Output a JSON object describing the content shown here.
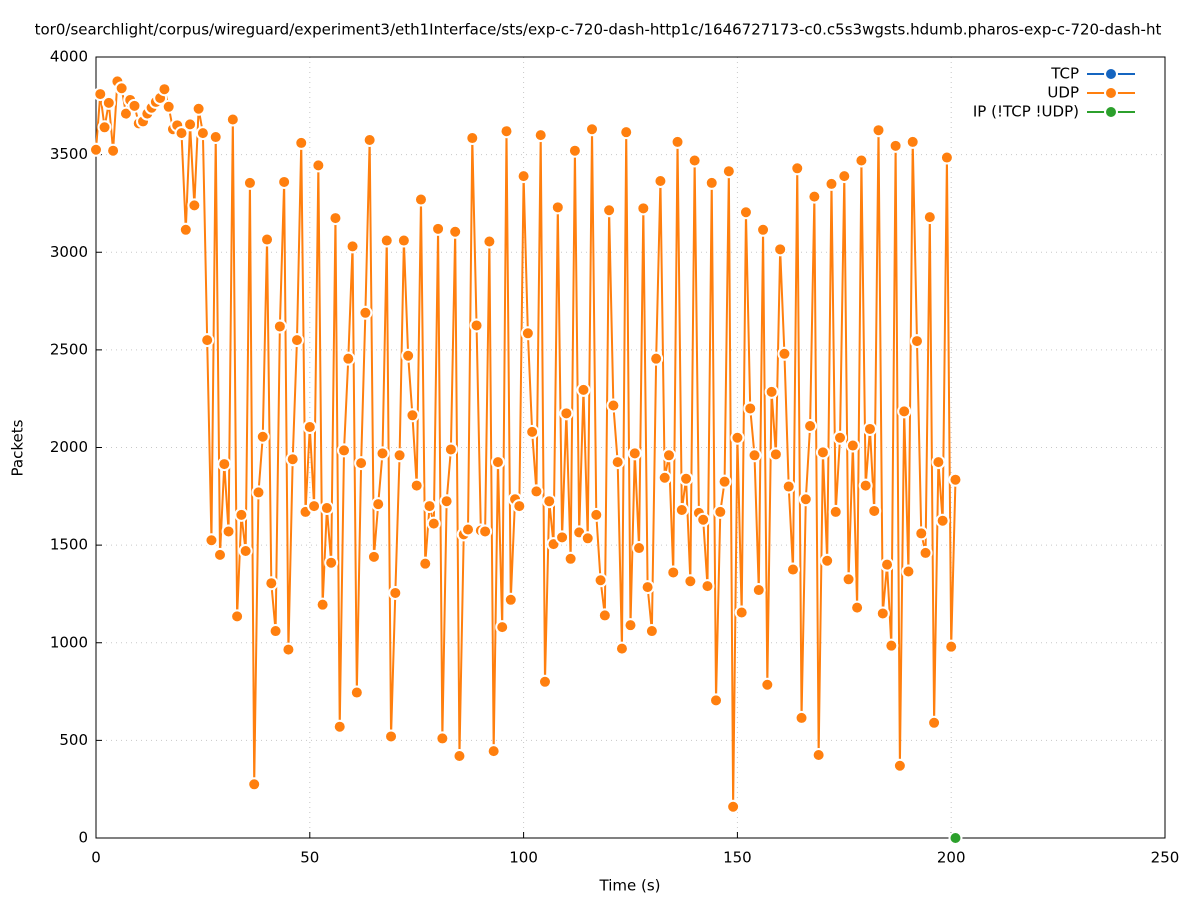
{
  "chart_data": {
    "type": "line",
    "title": "tor0/searchlight/corpus/wireguard/experiment3/eth1Interface/sts/exp-c-720-dash-http1c/1646727173-c0.c5s3wgsts.hdumb.pharos-exp-c-720-dash-ht",
    "x_label": "Time (s)",
    "y_label": "Packets",
    "xlim": [
      0,
      250
    ],
    "xticks": [
      0,
      50,
      100,
      150,
      200,
      250
    ],
    "ylim": [
      0,
      4000
    ],
    "yticks": [
      0,
      500,
      1000,
      1500,
      2000,
      2500,
      3000,
      3500,
      4000
    ],
    "grid": true,
    "legend": "top-right",
    "series": [
      {
        "name": "TCP",
        "color": "#1565c0",
        "x": [],
        "values": []
      },
      {
        "name": "UDP",
        "color": "#ff7f0e",
        "x": [
          0,
          1,
          2,
          3,
          4,
          5,
          6,
          7,
          8,
          9,
          10,
          11,
          12,
          13,
          14,
          15,
          16,
          17,
          18,
          19,
          20,
          21,
          22,
          23,
          24,
          25,
          26,
          27,
          28,
          29,
          30,
          31,
          32,
          33,
          34,
          35,
          36,
          37,
          38,
          39,
          40,
          41,
          42,
          43,
          44,
          45,
          46,
          47,
          48,
          49,
          50,
          51,
          52,
          53,
          54,
          55,
          56,
          57,
          58,
          59,
          60,
          61,
          62,
          63,
          64,
          65,
          66,
          67,
          68,
          69,
          70,
          71,
          72,
          73,
          74,
          75,
          76,
          77,
          78,
          79,
          80,
          81,
          82,
          83,
          84,
          85,
          86,
          87,
          88,
          89,
          90,
          91,
          92,
          93,
          94,
          95,
          96,
          97,
          98,
          99,
          100,
          101,
          102,
          103,
          104,
          105,
          106,
          107,
          108,
          109,
          110,
          111,
          112,
          113,
          114,
          115,
          116,
          117,
          118,
          119,
          120,
          121,
          122,
          123,
          124,
          125,
          126,
          127,
          128,
          129,
          130,
          131,
          132,
          133,
          134,
          135,
          136,
          137,
          138,
          139,
          140,
          141,
          142,
          143,
          144,
          145,
          146,
          147,
          148,
          149,
          150,
          151,
          152,
          153,
          154,
          155,
          156,
          157,
          158,
          159,
          160,
          161,
          162,
          163,
          164,
          165,
          166,
          167,
          168,
          169,
          170,
          171,
          172,
          173,
          174,
          175,
          176,
          177,
          178,
          179,
          180,
          181,
          182,
          183,
          184,
          185,
          186,
          187,
          188,
          189,
          190,
          191,
          192,
          193,
          194,
          195,
          196,
          197,
          198,
          199,
          200,
          201
        ],
        "values": [
          3525,
          3810,
          3640,
          3765,
          3520,
          3875,
          3840,
          3710,
          3780,
          3750,
          3660,
          3670,
          3710,
          3740,
          3770,
          3790,
          3835,
          3745,
          3630,
          3650,
          3610,
          3115,
          3655,
          3240,
          3735,
          3610,
          2550,
          1525,
          3590,
          1450,
          1915,
          1570,
          3680,
          1135,
          1655,
          1470,
          3355,
          275,
          1770,
          2055,
          3065,
          1305,
          1060,
          2620,
          3360,
          965,
          1940,
          2550,
          3560,
          1670,
          2105,
          1700,
          3445,
          1195,
          1690,
          1410,
          3175,
          570,
          1985,
          2455,
          3030,
          745,
          1920,
          2690,
          3575,
          1440,
          1710,
          1970,
          3060,
          520,
          1255,
          1960,
          3060,
          2470,
          2165,
          1805,
          3270,
          1405,
          1700,
          1610,
          3120,
          510,
          1725,
          1990,
          3105,
          420,
          1555,
          1580,
          3585,
          2625,
          1575,
          1570,
          3055,
          445,
          1925,
          1080,
          3620,
          1220,
          1735,
          1700,
          3390,
          2585,
          2080,
          1775,
          3600,
          800,
          1725,
          1505,
          3230,
          1540,
          2175,
          1430,
          3520,
          1565,
          2295,
          1535,
          3630,
          1655,
          1320,
          1140,
          3215,
          2215,
          1925,
          970,
          3615,
          1090,
          1970,
          1485,
          3225,
          1285,
          1060,
          2455,
          3365,
          1845,
          1960,
          1360,
          3565,
          1680,
          1840,
          1315,
          3470,
          1665,
          1630,
          1290,
          3355,
          705,
          1670,
          1825,
          3415,
          160,
          2050,
          1155,
          3205,
          2200,
          1960,
          1270,
          3115,
          785,
          2285,
          1965,
          3015,
          2480,
          1800,
          1375,
          3430,
          615,
          1735,
          2110,
          3285,
          425,
          1975,
          1420,
          3350,
          1670,
          2050,
          3390,
          1325,
          2010,
          1180,
          3470,
          1805,
          2095,
          1675,
          3625,
          1150,
          1400,
          985,
          3545,
          370,
          2185,
          1365,
          3565,
          2545,
          1560,
          1460,
          3180,
          590,
          1925,
          1625,
          3485,
          980,
          1835
        ]
      },
      {
        "name": "IP (!TCP  !UDP)",
        "color": "#2ca02c",
        "x": [
          201
        ],
        "values": [
          0
        ]
      }
    ]
  }
}
